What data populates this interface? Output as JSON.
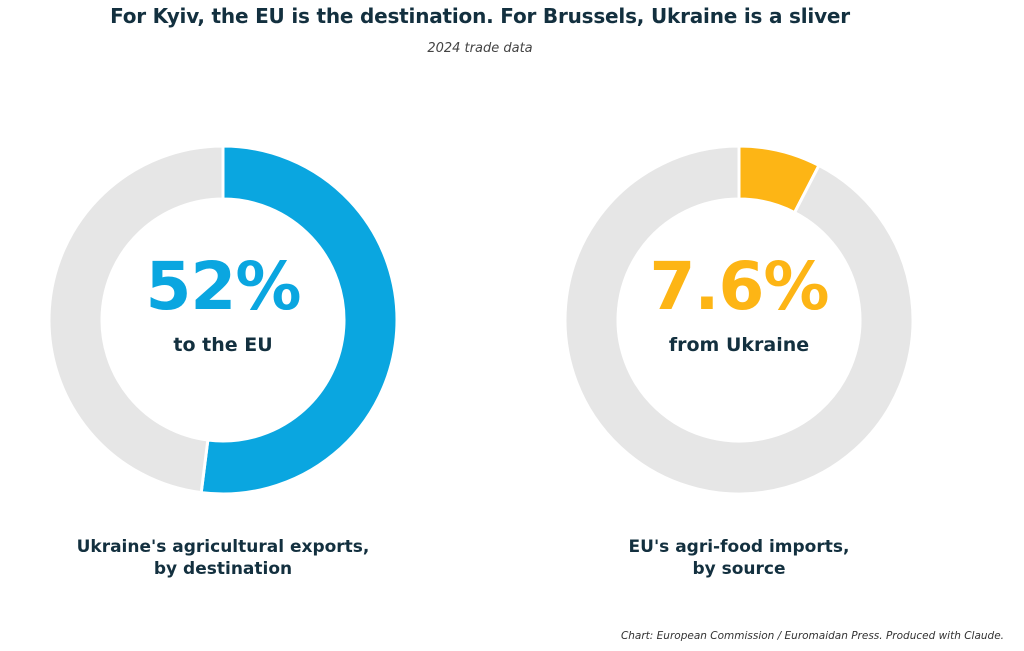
{
  "title": "For Kyiv, the EU is the destination. For Brussels, Ukraine is a sliver",
  "subtitle": "2024 trade data",
  "source": "Chart: European Commission / Euromaidan Press. Produced with Claude.",
  "colors": {
    "rest": "#e6e6e6",
    "left_accent": "#0aa6e0",
    "right_accent": "#fdb515"
  },
  "chart_data": [
    {
      "type": "pie",
      "donut": true,
      "center_value": "52%",
      "center_label": "to the EU",
      "caption_line1": "Ukraine's agricultural exports,",
      "caption_line2": "by destination",
      "slices": [
        {
          "label": "to the EU",
          "value": 52,
          "color": "#0aa6e0"
        },
        {
          "label": "",
          "value": 48,
          "color": "#e6e6e6"
        }
      ]
    },
    {
      "type": "pie",
      "donut": true,
      "center_value": "7.6%",
      "center_label": "from Ukraine",
      "caption_line1": "EU's agri-food imports,",
      "caption_line2": "by source",
      "slices": [
        {
          "label": "from Ukraine",
          "value": 7.6,
          "color": "#fdb515"
        },
        {
          "label": "",
          "value": 92.4,
          "color": "#e6e6e6"
        }
      ]
    }
  ]
}
